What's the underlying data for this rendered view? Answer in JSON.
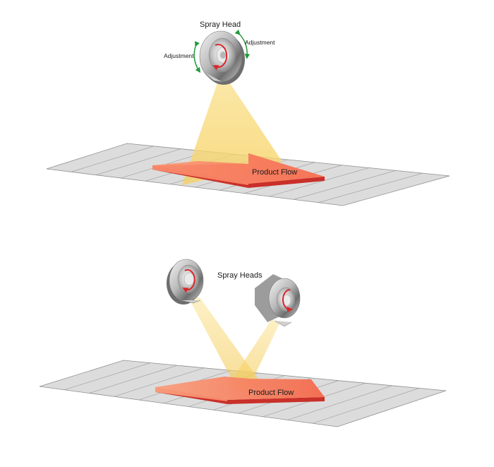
{
  "top_scene": {
    "spray_head_label": "Spray Head",
    "adjustment_left_label": "Adjustment",
    "adjustment_right_label": "Adjustment",
    "flow_label": "Product Flow"
  },
  "bottom_scene": {
    "spray_heads_label": "Spray Heads",
    "flow_label": "Product Flow"
  },
  "colors": {
    "spray_cone": "#f8d46a",
    "arrow_top": "#f7795b",
    "arrow_side": "#c9302a",
    "belt": "#d9d9d9",
    "belt_line": "#9a9a9a",
    "rotation_arrow": "#d9262b",
    "adjust_arrow": "#1f9a3a"
  }
}
